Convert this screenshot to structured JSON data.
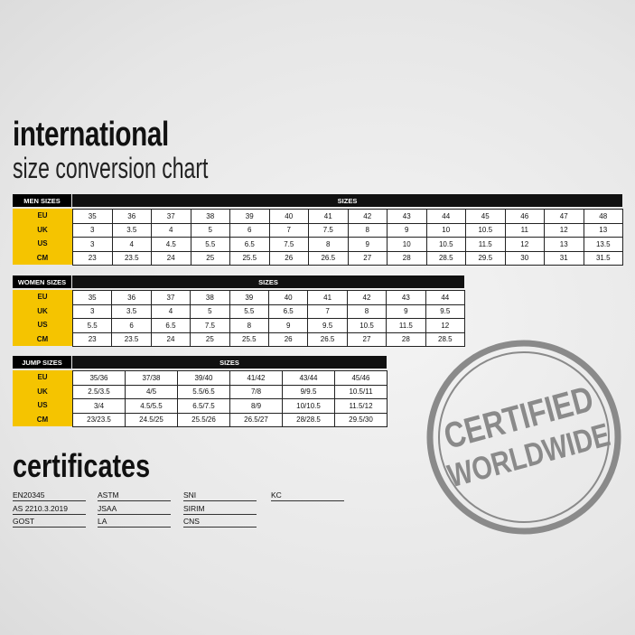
{
  "header": {
    "title": "international",
    "subtitle": "size conversion chart"
  },
  "tables": [
    {
      "label_header": "MEN SIZES",
      "header": "SIZES",
      "rows": [
        {
          "label": "EU",
          "cells": [
            "35",
            "36",
            "37",
            "38",
            "39",
            "40",
            "41",
            "42",
            "43",
            "44",
            "45",
            "46",
            "47",
            "48"
          ]
        },
        {
          "label": "UK",
          "cells": [
            "3",
            "3.5",
            "4",
            "5",
            "6",
            "7",
            "7.5",
            "8",
            "9",
            "10",
            "10.5",
            "11",
            "12",
            "13"
          ]
        },
        {
          "label": "US",
          "cells": [
            "3",
            "4",
            "4.5",
            "5.5",
            "6.5",
            "7.5",
            "8",
            "9",
            "10",
            "10.5",
            "11.5",
            "12",
            "13",
            "13.5"
          ]
        },
        {
          "label": "CM",
          "cells": [
            "23",
            "23.5",
            "24",
            "25",
            "25.5",
            "26",
            "26.5",
            "27",
            "28",
            "28.5",
            "29.5",
            "30",
            "31",
            "31.5"
          ]
        }
      ]
    },
    {
      "label_header": "WOMEN SIZES",
      "header": "SIZES",
      "rows": [
        {
          "label": "EU",
          "cells": [
            "35",
            "36",
            "37",
            "38",
            "39",
            "40",
            "41",
            "42",
            "43",
            "44"
          ]
        },
        {
          "label": "UK",
          "cells": [
            "3",
            "3.5",
            "4",
            "5",
            "5.5",
            "6.5",
            "7",
            "8",
            "9",
            "9.5"
          ]
        },
        {
          "label": "US",
          "cells": [
            "5.5",
            "6",
            "6.5",
            "7.5",
            "8",
            "9",
            "9.5",
            "10.5",
            "11.5",
            "12"
          ]
        },
        {
          "label": "CM",
          "cells": [
            "23",
            "23.5",
            "24",
            "25",
            "25.5",
            "26",
            "26.5",
            "27",
            "28",
            "28.5"
          ]
        }
      ]
    },
    {
      "label_header": "JUMP SIZES",
      "header": "SIZES",
      "rows": [
        {
          "label": "EU",
          "cells": [
            "35/36",
            "37/38",
            "39/40",
            "41/42",
            "43/44",
            "45/46"
          ]
        },
        {
          "label": "UK",
          "cells": [
            "2.5/3.5",
            "4/5",
            "5.5/6.5",
            "7/8",
            "9/9.5",
            "10.5/11"
          ]
        },
        {
          "label": "US",
          "cells": [
            "3/4",
            "4.5/5.5",
            "6.5/7.5",
            "8/9",
            "10/10.5",
            "11.5/12"
          ]
        },
        {
          "label": "CM",
          "cells": [
            "23/23.5",
            "24.5/25",
            "25.5/26",
            "26.5/27",
            "28/28.5",
            "29.5/30"
          ]
        }
      ]
    }
  ],
  "certificates": {
    "title": "certificates",
    "rows": [
      [
        "EN20345",
        "ASTM",
        "SNI",
        "KC"
      ],
      [
        "AS 2210.3.2019",
        "JSAA",
        "SIRIM"
      ],
      [
        "GOST",
        "LA",
        "CNS"
      ]
    ]
  },
  "stamp": {
    "line1": "CERTIFIED",
    "line2": "WORLDWIDE"
  }
}
